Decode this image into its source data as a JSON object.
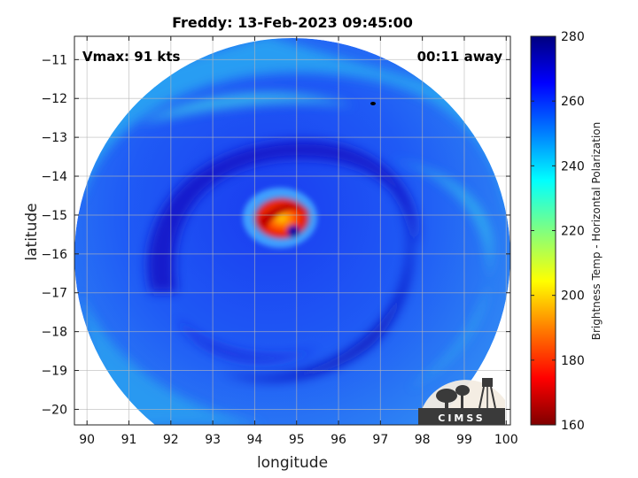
{
  "chart_data": {
    "type": "heatmap",
    "title": "Freddy: 13-Feb-2023 09:45:00",
    "xlabel": "longitude",
    "ylabel": "latitude",
    "xlim": [
      89.7,
      100.1
    ],
    "ylim": [
      -20.4,
      -10.4
    ],
    "xticks": [
      90,
      91,
      92,
      93,
      94,
      95,
      96,
      97,
      98,
      99,
      100
    ],
    "yticks": [
      -11,
      -12,
      -13,
      -14,
      -15,
      -16,
      -17,
      -18,
      -19,
      -20
    ],
    "grid": true,
    "colorbar": {
      "label": "Brightness Temp - Horizontal Polarization",
      "min": 160,
      "max": 280,
      "ticks": [
        160,
        180,
        200,
        220,
        240,
        260,
        280
      ],
      "colormap": "jet"
    },
    "annotations": {
      "vmax": "Vmax: 91 kts",
      "time_offset": "00:11 away"
    },
    "logo_text": "CIMSS"
  }
}
